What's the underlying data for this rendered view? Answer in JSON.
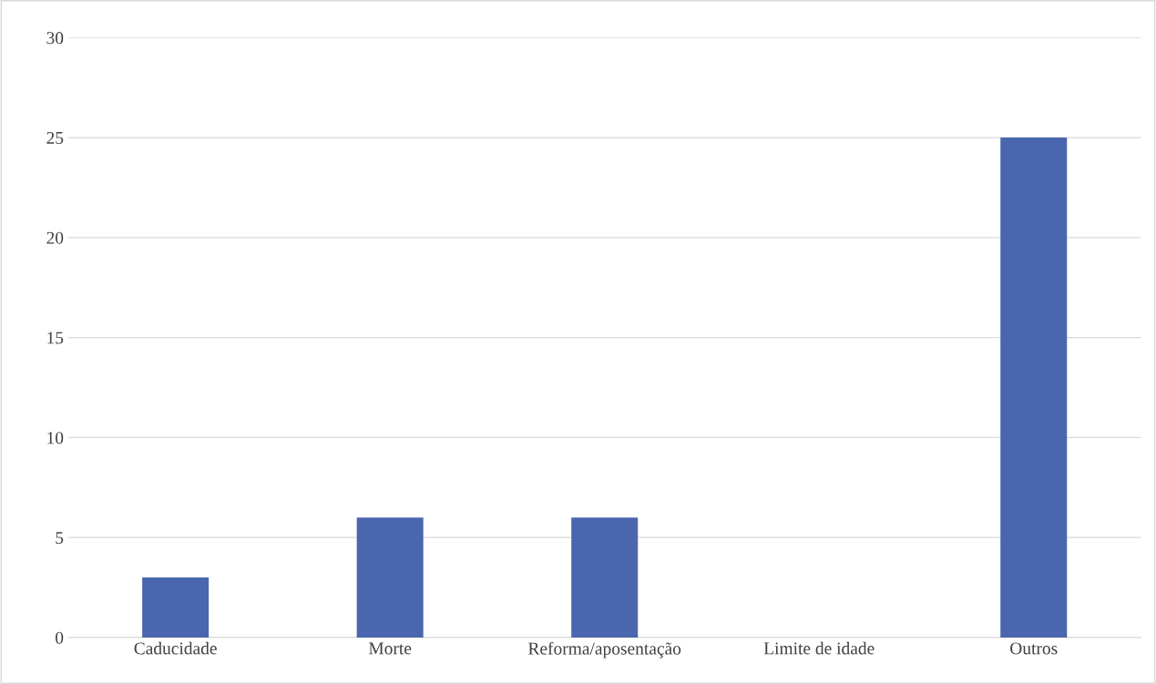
{
  "chart_data": {
    "type": "bar",
    "categories": [
      "Caducidade",
      "Morte",
      "Reforma/aposentação",
      "Limite de idade",
      "Outros"
    ],
    "values": [
      3,
      6,
      6,
      0,
      25
    ],
    "color": "#4a66ae",
    "ylim": [
      0,
      30
    ],
    "yticks": [
      0,
      5,
      10,
      15,
      20,
      25,
      30
    ],
    "grid": "y",
    "legend": false
  }
}
